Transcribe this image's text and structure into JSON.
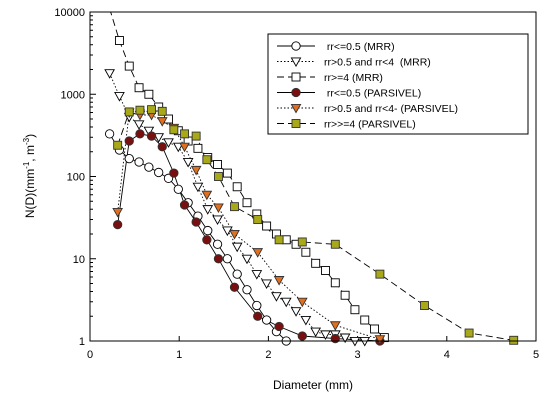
{
  "chart_data": {
    "type": "line",
    "title": "",
    "xlabel": "Diameter (mm)",
    "ylabel": "N(D)(mm",
    "ylabel_exp1": "-1",
    "ylabel_mid": ", m",
    "ylabel_exp2": "-3",
    "ylabel_end": ")",
    "xlim": [
      0,
      5
    ],
    "ylim": [
      1,
      10000
    ],
    "yscale": "log",
    "grid": false,
    "legend_position": "top-right",
    "xticks": [
      "0",
      "1",
      "2",
      "3",
      "4",
      "5"
    ],
    "yticks": [
      "1",
      "10",
      "100",
      "1000",
      "10000"
    ],
    "series": [
      {
        "name": " rr<=0.5 (MRR)",
        "marker": "circle-open",
        "line": "solid",
        "color": "#000000",
        "x": [
          0.22,
          0.33,
          0.44,
          0.55,
          0.66,
          0.77,
          0.88,
          0.99,
          1.1,
          1.21,
          1.32,
          1.43,
          1.54,
          1.65,
          1.76,
          1.87,
          1.98,
          2.09,
          2.2,
          2.31
        ],
        "y": [
          330,
          210,
          165,
          150,
          130,
          112,
          95,
          70,
          48,
          33,
          22,
          15,
          10,
          6.5,
          4.2,
          2.7,
          1.8,
          1.3,
          1.0,
          0.8
        ]
      },
      {
        "name": "rr>0.5 and rr<4  (MRR)",
        "marker": "triangle-down-open",
        "line": "dotted",
        "color": "#000000",
        "x": [
          0.22,
          0.33,
          0.44,
          0.55,
          0.66,
          0.77,
          0.88,
          0.99,
          1.1,
          1.21,
          1.32,
          1.43,
          1.54,
          1.65,
          1.76,
          1.87,
          1.98,
          2.09,
          2.2,
          2.31,
          2.42,
          2.53,
          2.64,
          2.75,
          2.86,
          2.97,
          3.08
        ],
        "y": [
          1800,
          950,
          530,
          430,
          360,
          300,
          260,
          230,
          150,
          75,
          40,
          30,
          22,
          14,
          10,
          6.5,
          5,
          3.5,
          3,
          2.3,
          1.8,
          1.3,
          1.2,
          1.2,
          1.1,
          1.0,
          1.0
        ]
      },
      {
        "name": "rr>=4 (MRR)",
        "marker": "square-open",
        "line": "dashed",
        "color": "#000000",
        "x": [
          0.22,
          0.33,
          0.44,
          0.55,
          0.66,
          0.77,
          0.88,
          0.99,
          1.1,
          1.21,
          1.32,
          1.43,
          1.54,
          1.65,
          1.76,
          1.87,
          1.98,
          2.09,
          2.2,
          2.31,
          2.42,
          2.53,
          2.64,
          2.75,
          2.86,
          2.97,
          3.08,
          3.19,
          3.3
        ],
        "y": [
          11000,
          4500,
          2200,
          1200,
          1000,
          700,
          500,
          360,
          270,
          220,
          170,
          140,
          110,
          75,
          48,
          35,
          25,
          20,
          17,
          15,
          12,
          8.8,
          7.2,
          5.1,
          3.6,
          2.4,
          1.8,
          1.4,
          1.1
        ]
      },
      {
        "name": " rr<=0.5 (PARSIVEL)",
        "marker": "circle-filled",
        "line": "solid",
        "color": "#7a0f0f",
        "x": [
          0.31,
          0.44,
          0.56,
          0.69,
          0.81,
          0.94,
          1.06,
          1.19,
          1.31,
          1.44,
          1.62,
          1.88,
          2.12,
          2.38,
          2.75,
          3.25
        ],
        "y": [
          26,
          270,
          330,
          310,
          230,
          110,
          45,
          28,
          17,
          10,
          4.5,
          2.0,
          1.5,
          1.15,
          1.07,
          1.0
        ]
      },
      {
        "name": "rr>0.5 and rr<4- (PARSIVEL)",
        "marker": "triangle-down-filled",
        "line": "dotted",
        "color": "#e07020",
        "x": [
          0.31,
          0.44,
          0.56,
          0.69,
          0.81,
          0.94,
          1.06,
          1.19,
          1.31,
          1.44,
          1.62,
          1.88,
          2.12,
          2.38,
          2.75,
          3.25
        ],
        "y": [
          37,
          600,
          560,
          560,
          470,
          390,
          230,
          120,
          60,
          42,
          20,
          12,
          5.5,
          3.0,
          1.55,
          1.05
        ]
      },
      {
        "name": "rr>>=4 (PARSIVEL)",
        "marker": "square-filled",
        "line": "dashed",
        "color": "#a8a818",
        "x": [
          0.31,
          0.44,
          0.56,
          0.69,
          0.81,
          0.94,
          1.06,
          1.19,
          1.31,
          1.44,
          1.62,
          1.88,
          2.12,
          2.38,
          2.75,
          3.25,
          3.75,
          4.25,
          4.75
        ],
        "y": [
          240,
          610,
          640,
          650,
          620,
          370,
          330,
          310,
          160,
          100,
          43,
          30,
          17,
          16,
          15,
          6.5,
          2.7,
          1.25,
          1.02
        ]
      }
    ]
  }
}
